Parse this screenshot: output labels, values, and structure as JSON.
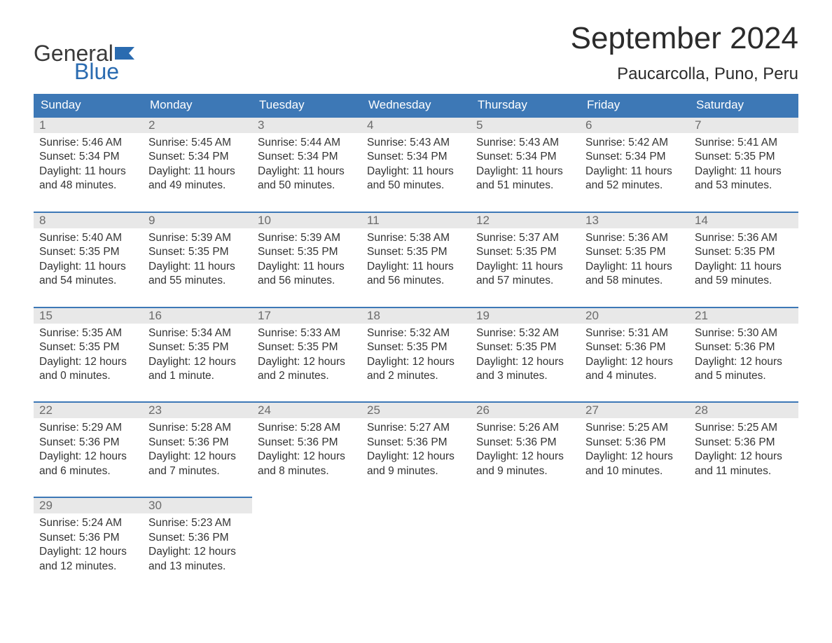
{
  "brand": {
    "word1": "General",
    "word2": "Blue",
    "word1_color": "#3a3a3a",
    "word2_color": "#2a6bb0",
    "flag_color": "#2a6bb0"
  },
  "title": "September 2024",
  "location": "Paucarcolla, Puno, Peru",
  "colors": {
    "header_bg": "#3d78b6",
    "header_text": "#ffffff",
    "daynum_bg": "#e8e8e8",
    "daynum_border": "#3d78b6",
    "daynum_text": "#6b6b6b",
    "body_text": "#333333",
    "page_bg": "#ffffff"
  },
  "weekdays": [
    "Sunday",
    "Monday",
    "Tuesday",
    "Wednesday",
    "Thursday",
    "Friday",
    "Saturday"
  ],
  "weeks": [
    [
      {
        "n": "1",
        "sunrise": "Sunrise: 5:46 AM",
        "sunset": "Sunset: 5:34 PM",
        "daylight": "Daylight: 11 hours and 48 minutes."
      },
      {
        "n": "2",
        "sunrise": "Sunrise: 5:45 AM",
        "sunset": "Sunset: 5:34 PM",
        "daylight": "Daylight: 11 hours and 49 minutes."
      },
      {
        "n": "3",
        "sunrise": "Sunrise: 5:44 AM",
        "sunset": "Sunset: 5:34 PM",
        "daylight": "Daylight: 11 hours and 50 minutes."
      },
      {
        "n": "4",
        "sunrise": "Sunrise: 5:43 AM",
        "sunset": "Sunset: 5:34 PM",
        "daylight": "Daylight: 11 hours and 50 minutes."
      },
      {
        "n": "5",
        "sunrise": "Sunrise: 5:43 AM",
        "sunset": "Sunset: 5:34 PM",
        "daylight": "Daylight: 11 hours and 51 minutes."
      },
      {
        "n": "6",
        "sunrise": "Sunrise: 5:42 AM",
        "sunset": "Sunset: 5:34 PM",
        "daylight": "Daylight: 11 hours and 52 minutes."
      },
      {
        "n": "7",
        "sunrise": "Sunrise: 5:41 AM",
        "sunset": "Sunset: 5:35 PM",
        "daylight": "Daylight: 11 hours and 53 minutes."
      }
    ],
    [
      {
        "n": "8",
        "sunrise": "Sunrise: 5:40 AM",
        "sunset": "Sunset: 5:35 PM",
        "daylight": "Daylight: 11 hours and 54 minutes."
      },
      {
        "n": "9",
        "sunrise": "Sunrise: 5:39 AM",
        "sunset": "Sunset: 5:35 PM",
        "daylight": "Daylight: 11 hours and 55 minutes."
      },
      {
        "n": "10",
        "sunrise": "Sunrise: 5:39 AM",
        "sunset": "Sunset: 5:35 PM",
        "daylight": "Daylight: 11 hours and 56 minutes."
      },
      {
        "n": "11",
        "sunrise": "Sunrise: 5:38 AM",
        "sunset": "Sunset: 5:35 PM",
        "daylight": "Daylight: 11 hours and 56 minutes."
      },
      {
        "n": "12",
        "sunrise": "Sunrise: 5:37 AM",
        "sunset": "Sunset: 5:35 PM",
        "daylight": "Daylight: 11 hours and 57 minutes."
      },
      {
        "n": "13",
        "sunrise": "Sunrise: 5:36 AM",
        "sunset": "Sunset: 5:35 PM",
        "daylight": "Daylight: 11 hours and 58 minutes."
      },
      {
        "n": "14",
        "sunrise": "Sunrise: 5:36 AM",
        "sunset": "Sunset: 5:35 PM",
        "daylight": "Daylight: 11 hours and 59 minutes."
      }
    ],
    [
      {
        "n": "15",
        "sunrise": "Sunrise: 5:35 AM",
        "sunset": "Sunset: 5:35 PM",
        "daylight": "Daylight: 12 hours and 0 minutes."
      },
      {
        "n": "16",
        "sunrise": "Sunrise: 5:34 AM",
        "sunset": "Sunset: 5:35 PM",
        "daylight": "Daylight: 12 hours and 1 minute."
      },
      {
        "n": "17",
        "sunrise": "Sunrise: 5:33 AM",
        "sunset": "Sunset: 5:35 PM",
        "daylight": "Daylight: 12 hours and 2 minutes."
      },
      {
        "n": "18",
        "sunrise": "Sunrise: 5:32 AM",
        "sunset": "Sunset: 5:35 PM",
        "daylight": "Daylight: 12 hours and 2 minutes."
      },
      {
        "n": "19",
        "sunrise": "Sunrise: 5:32 AM",
        "sunset": "Sunset: 5:35 PM",
        "daylight": "Daylight: 12 hours and 3 minutes."
      },
      {
        "n": "20",
        "sunrise": "Sunrise: 5:31 AM",
        "sunset": "Sunset: 5:36 PM",
        "daylight": "Daylight: 12 hours and 4 minutes."
      },
      {
        "n": "21",
        "sunrise": "Sunrise: 5:30 AM",
        "sunset": "Sunset: 5:36 PM",
        "daylight": "Daylight: 12 hours and 5 minutes."
      }
    ],
    [
      {
        "n": "22",
        "sunrise": "Sunrise: 5:29 AM",
        "sunset": "Sunset: 5:36 PM",
        "daylight": "Daylight: 12 hours and 6 minutes."
      },
      {
        "n": "23",
        "sunrise": "Sunrise: 5:28 AM",
        "sunset": "Sunset: 5:36 PM",
        "daylight": "Daylight: 12 hours and 7 minutes."
      },
      {
        "n": "24",
        "sunrise": "Sunrise: 5:28 AM",
        "sunset": "Sunset: 5:36 PM",
        "daylight": "Daylight: 12 hours and 8 minutes."
      },
      {
        "n": "25",
        "sunrise": "Sunrise: 5:27 AM",
        "sunset": "Sunset: 5:36 PM",
        "daylight": "Daylight: 12 hours and 9 minutes."
      },
      {
        "n": "26",
        "sunrise": "Sunrise: 5:26 AM",
        "sunset": "Sunset: 5:36 PM",
        "daylight": "Daylight: 12 hours and 9 minutes."
      },
      {
        "n": "27",
        "sunrise": "Sunrise: 5:25 AM",
        "sunset": "Sunset: 5:36 PM",
        "daylight": "Daylight: 12 hours and 10 minutes."
      },
      {
        "n": "28",
        "sunrise": "Sunrise: 5:25 AM",
        "sunset": "Sunset: 5:36 PM",
        "daylight": "Daylight: 12 hours and 11 minutes."
      }
    ],
    [
      {
        "n": "29",
        "sunrise": "Sunrise: 5:24 AM",
        "sunset": "Sunset: 5:36 PM",
        "daylight": "Daylight: 12 hours and 12 minutes."
      },
      {
        "n": "30",
        "sunrise": "Sunrise: 5:23 AM",
        "sunset": "Sunset: 5:36 PM",
        "daylight": "Daylight: 12 hours and 13 minutes."
      },
      null,
      null,
      null,
      null,
      null
    ]
  ]
}
